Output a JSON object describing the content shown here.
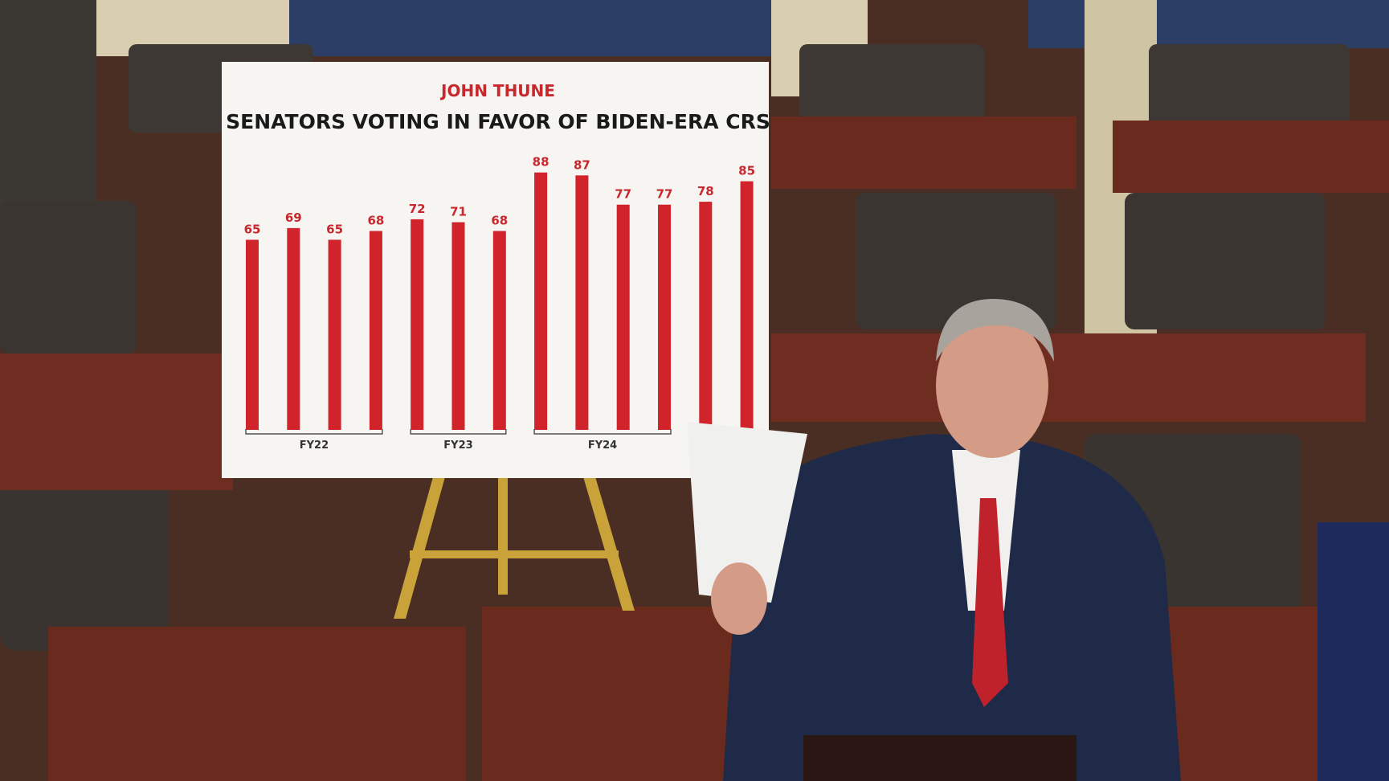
{
  "chart_data": {
    "type": "bar",
    "brand": "JOHN THUNE",
    "title": "SENATORS VOTING IN FAVOR OF BIDEN-ERA CRS",
    "values": [
      65,
      69,
      65,
      68,
      72,
      71,
      68,
      88,
      87,
      77,
      77,
      78,
      85
    ],
    "color": "#d0232a",
    "group_labels": [
      "FY22",
      "FY23",
      "FY24"
    ]
  }
}
